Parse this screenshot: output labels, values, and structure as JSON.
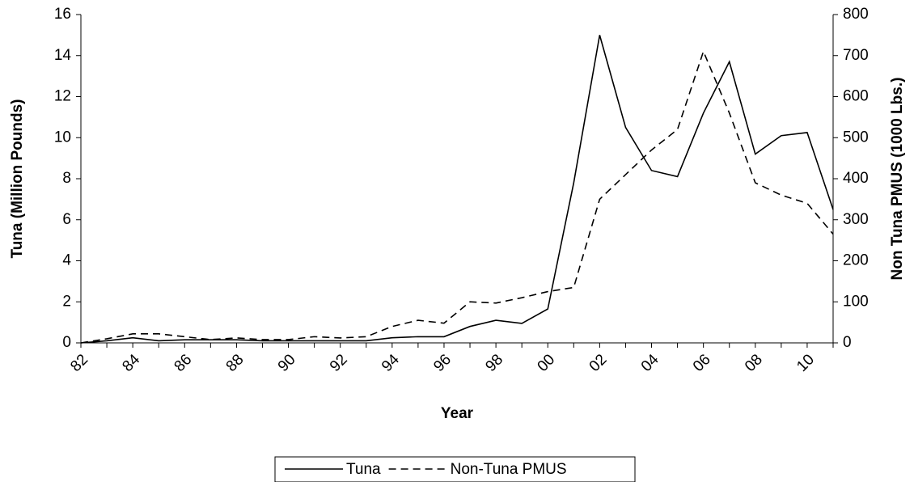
{
  "chart_data": {
    "type": "line",
    "x_label": "Year",
    "y_label": "Tuna (Million Pounds)",
    "y2_label": "Non Tuna PMUS (1000 Lbs.)",
    "categories": [
      "82",
      null,
      "84",
      null,
      "86",
      null,
      "88",
      null,
      "90",
      null,
      "92",
      null,
      "94",
      null,
      "96",
      null,
      "98",
      null,
      "00",
      null,
      "02",
      null,
      "04",
      null,
      "06",
      null,
      "08",
      null,
      "10",
      null
    ],
    "series": [
      {
        "name": "Tuna",
        "color": "#000000",
        "dash": "solid",
        "values": [
          0,
          0.1,
          0.25,
          0.1,
          0.15,
          0.15,
          0.15,
          0.1,
          0.1,
          0.1,
          0.1,
          0.1,
          0.25,
          0.3,
          0.3,
          0.8,
          1.1,
          0.95,
          1.65,
          7.8,
          15,
          10.5,
          8.4,
          8.1,
          11.2,
          13.7,
          9.2,
          10.1,
          10.25,
          6.5
        ]
      },
      {
        "name": "Non-Tuna PMUS",
        "color": "#000000",
        "dash": "dashed",
        "axis": "y2",
        "values": [
          0,
          10,
          22,
          22,
          15,
          8,
          12,
          8,
          8,
          15,
          12,
          15,
          40,
          55,
          48,
          100,
          97,
          110,
          125,
          135,
          350,
          410,
          470,
          520,
          710,
          560,
          390,
          360,
          340,
          265
        ]
      }
    ],
    "ylim": [
      0,
      16
    ],
    "yticks": [
      0,
      2,
      4,
      6,
      8,
      10,
      12,
      14,
      16
    ],
    "y2lim": [
      0,
      800
    ],
    "y2ticks": [
      0,
      100,
      200,
      300,
      400,
      500,
      600,
      700,
      800
    ],
    "grid": false,
    "legend": "bottom"
  }
}
